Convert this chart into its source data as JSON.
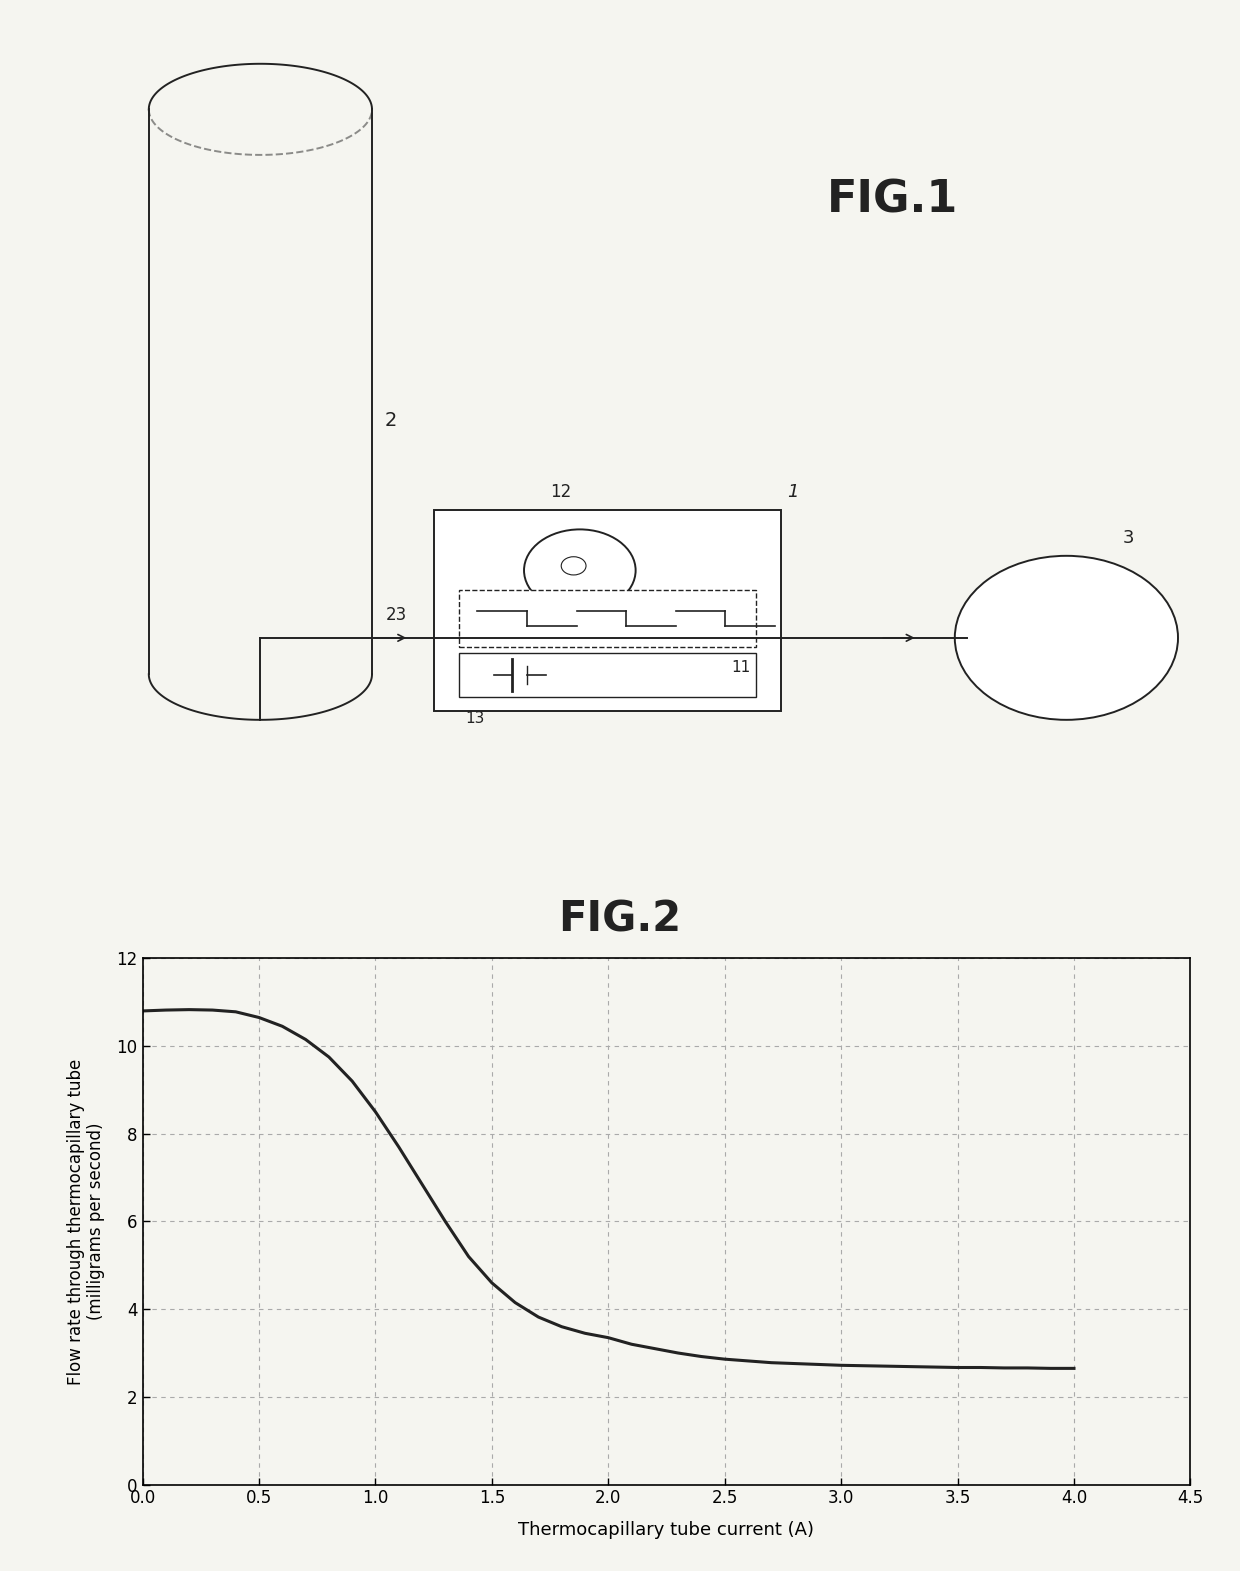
{
  "fig1_title": "FIG.1",
  "fig2_title": "FIG.2",
  "graph_xlabel": "Thermocapillary tube current (A)",
  "graph_ylabel": "Flow rate through thermocapillary tube\n(milligrams per second)",
  "xlim": [
    0,
    4.5
  ],
  "ylim": [
    0,
    12
  ],
  "xticks": [
    0,
    0.5,
    1,
    1.5,
    2,
    2.5,
    3,
    3.5,
    4,
    4.5
  ],
  "yticks": [
    0,
    2,
    4,
    6,
    8,
    10,
    12
  ],
  "curve_x": [
    0.0,
    0.1,
    0.2,
    0.3,
    0.4,
    0.5,
    0.6,
    0.7,
    0.8,
    0.9,
    1.0,
    1.1,
    1.2,
    1.3,
    1.4,
    1.5,
    1.6,
    1.7,
    1.8,
    1.9,
    2.0,
    2.1,
    2.2,
    2.3,
    2.4,
    2.5,
    2.6,
    2.7,
    2.8,
    2.9,
    3.0,
    3.1,
    3.2,
    3.3,
    3.4,
    3.5,
    3.6,
    3.7,
    3.8,
    3.9,
    4.0
  ],
  "curve_y": [
    10.8,
    10.82,
    10.83,
    10.82,
    10.78,
    10.65,
    10.45,
    10.15,
    9.75,
    9.2,
    8.5,
    7.7,
    6.85,
    6.0,
    5.2,
    4.6,
    4.15,
    3.82,
    3.6,
    3.45,
    3.35,
    3.2,
    3.1,
    3.0,
    2.92,
    2.86,
    2.82,
    2.78,
    2.76,
    2.74,
    2.72,
    2.71,
    2.7,
    2.69,
    2.68,
    2.67,
    2.67,
    2.66,
    2.66,
    2.65,
    2.65
  ],
  "line_color": "#222222",
  "grid_color": "#aaaaaa",
  "background_color": "#f5f5f0"
}
